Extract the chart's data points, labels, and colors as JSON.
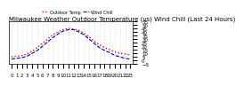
{
  "title": "Milwaukee Weather Outdoor Temperature (vs) Wind Chill (Last 24 Hours)",
  "hours": [
    0,
    1,
    2,
    3,
    4,
    5,
    6,
    7,
    8,
    9,
    10,
    11,
    12,
    13,
    14,
    15,
    16,
    17,
    18,
    19,
    20,
    21,
    22,
    23
  ],
  "temp": [
    5,
    6,
    7,
    9,
    13,
    18,
    24,
    30,
    36,
    40,
    43,
    45,
    44,
    42,
    38,
    33,
    27,
    22,
    18,
    15,
    12,
    10,
    9,
    8
  ],
  "windchill": [
    2,
    3,
    4,
    6,
    10,
    14,
    20,
    26,
    32,
    37,
    41,
    43,
    43,
    40,
    36,
    30,
    24,
    18,
    14,
    11,
    7,
    5,
    3,
    2
  ],
  "temp_color": "#ff0000",
  "windchill_color": "#0000cc",
  "background_color": "#ffffff",
  "grid_color": "#aaaaaa",
  "ylim": [
    -5,
    55
  ],
  "yticks": [
    -5,
    0,
    5,
    10,
    15,
    20,
    25,
    30,
    35,
    40,
    45,
    50,
    55
  ],
  "title_fontsize": 5,
  "tick_fontsize": 4,
  "legend_items": [
    "Outdoor Temp",
    "Wind Chill"
  ],
  "legend_colors": [
    "#ff0000",
    "#0000cc"
  ]
}
